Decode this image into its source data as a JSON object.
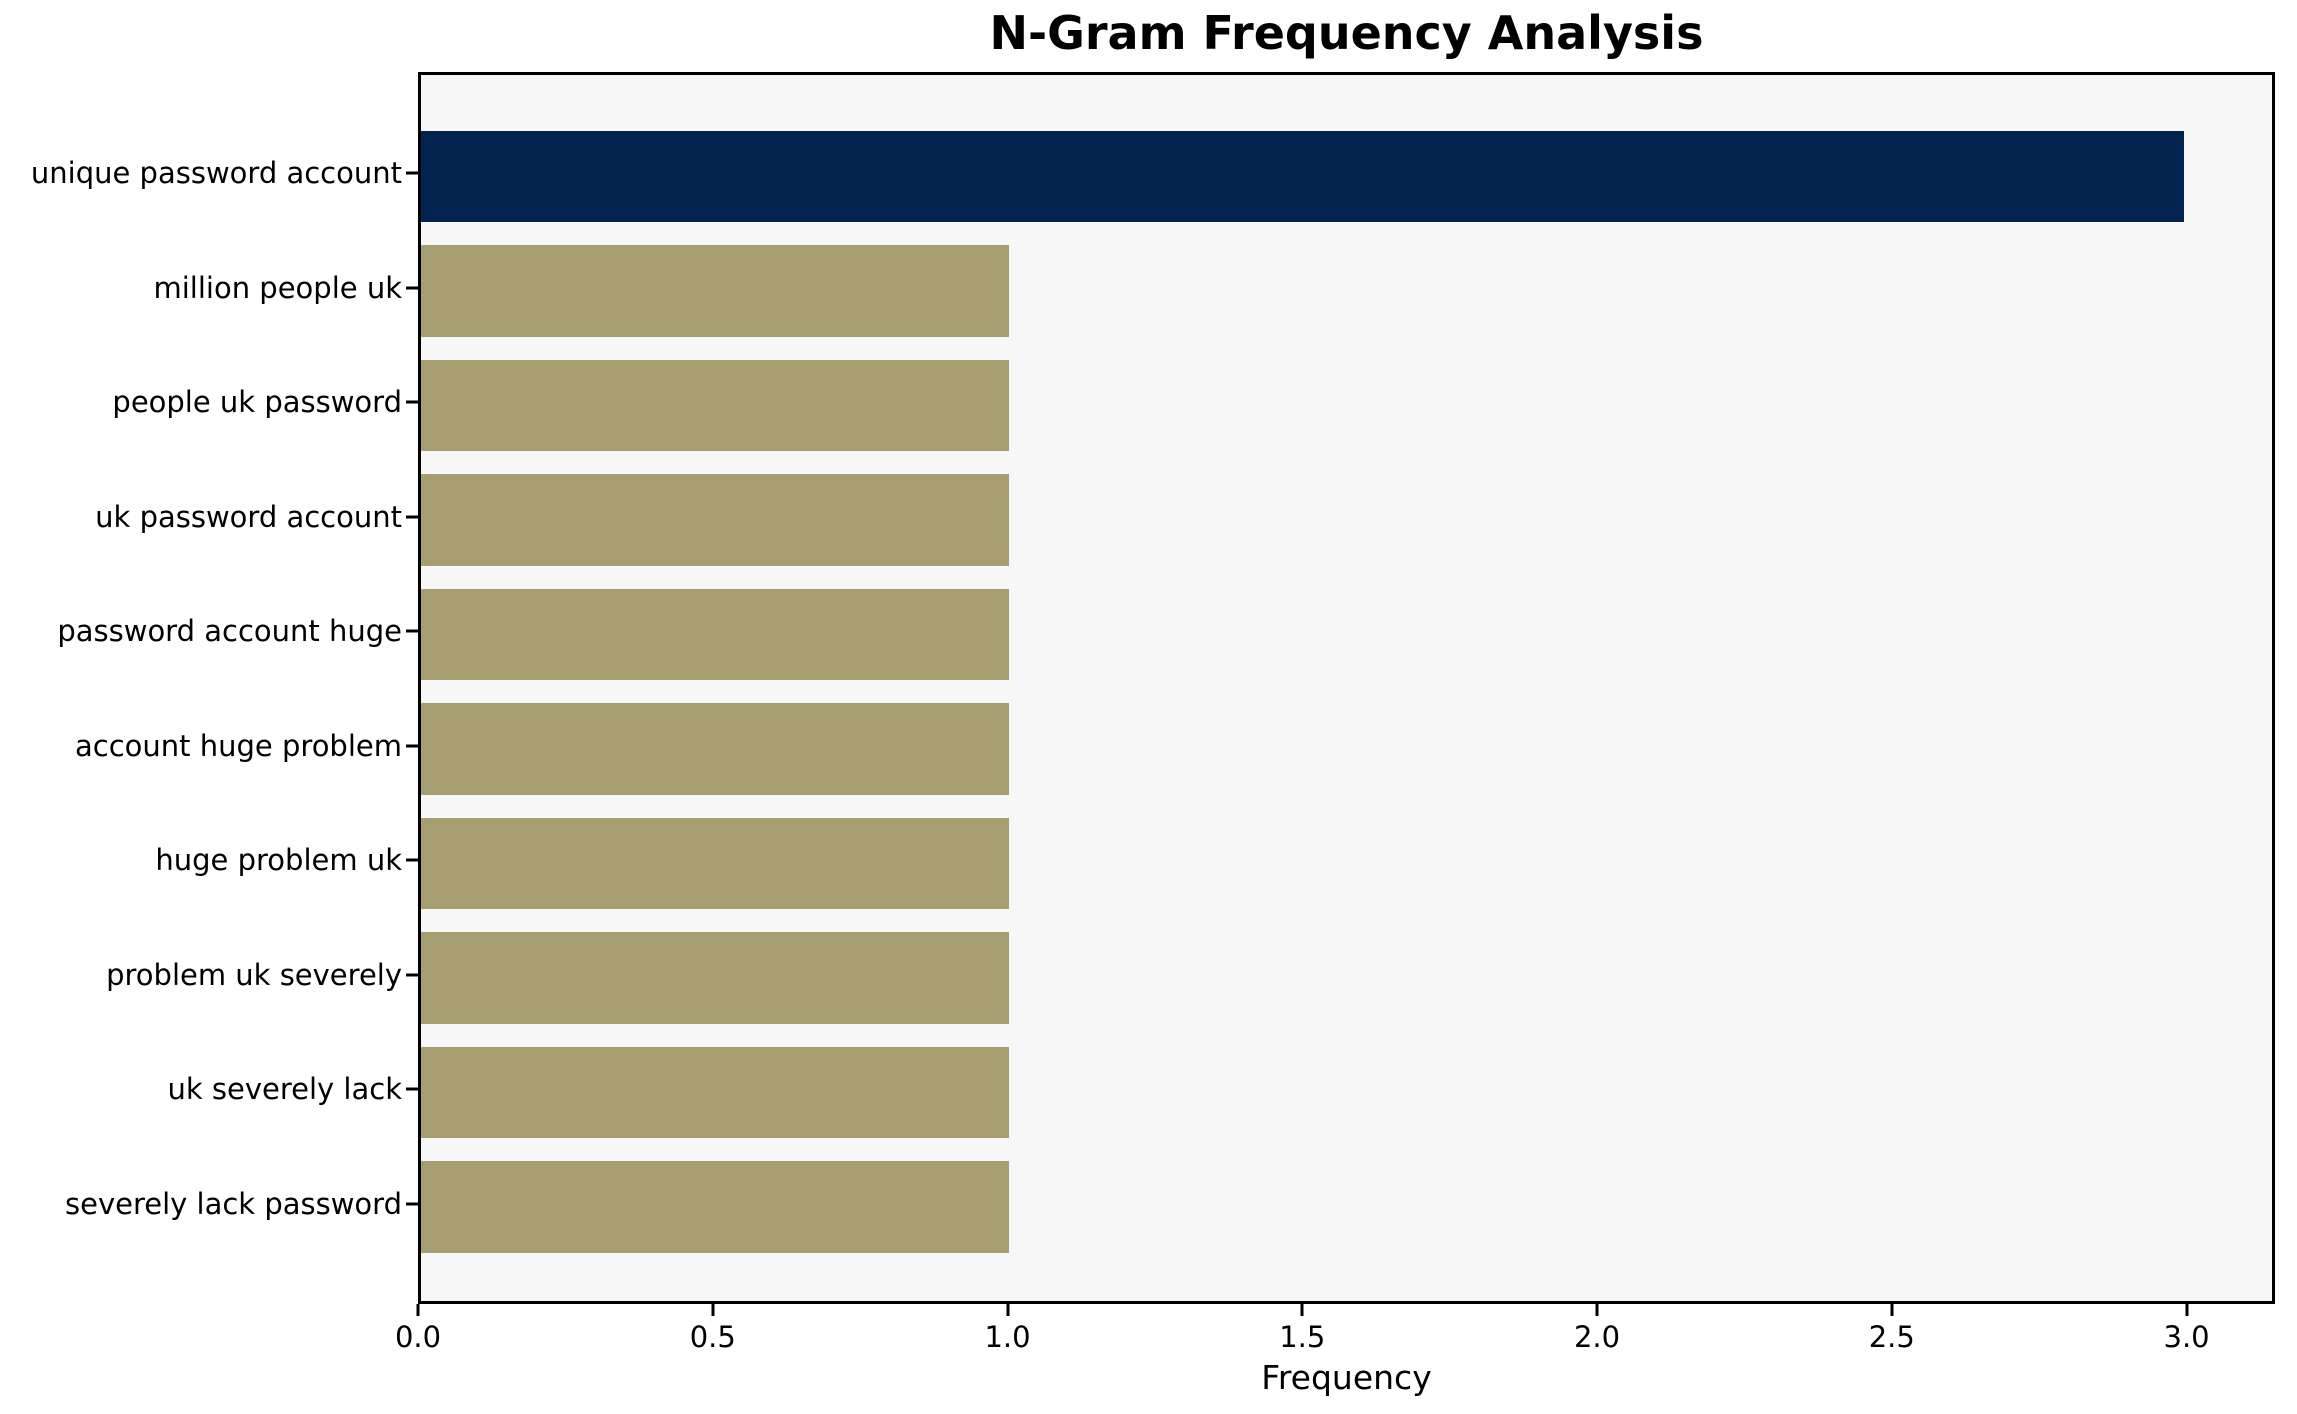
{
  "chart_data": {
    "type": "bar",
    "orientation": "horizontal",
    "title": "N-Gram Frequency Analysis",
    "xlabel": "Frequency",
    "ylabel": "",
    "categories": [
      "unique password account",
      "million people uk",
      "people uk password",
      "uk password account",
      "password account huge",
      "account huge problem",
      "huge problem uk",
      "problem uk severely",
      "uk severely lack",
      "severely lack password"
    ],
    "values": [
      3,
      1,
      1,
      1,
      1,
      1,
      1,
      1,
      1,
      1
    ],
    "bar_colors": [
      "#02234E",
      "#A69D70",
      "#A69D70",
      "#A69D70",
      "#A69D70",
      "#A69D70",
      "#A69D70",
      "#A69D70",
      "#A69D70",
      "#A69D70"
    ],
    "xlim": [
      0,
      3.15
    ],
    "xticks": [
      0.0,
      0.5,
      1.0,
      1.5,
      2.0,
      2.5,
      3.0
    ],
    "xtick_labels": [
      "0.0",
      "0.5",
      "1.0",
      "1.5",
      "2.0",
      "2.5",
      "3.0"
    ],
    "grid": false,
    "legend_position": "none",
    "colors": {
      "highlight_bar": "#02234E",
      "default_bar": "#A69D70",
      "plot_background": "#F7F7F7",
      "figure_background": "#FFFFFF",
      "axis": "#000000",
      "text": "#000000"
    }
  }
}
